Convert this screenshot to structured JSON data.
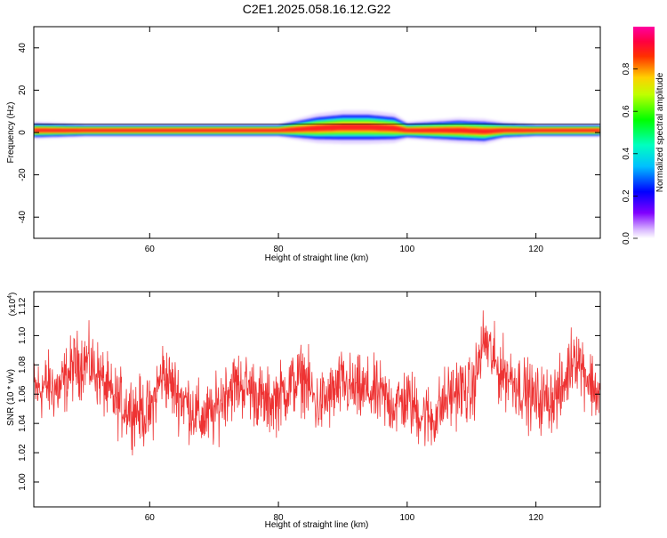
{
  "figure_title": "C2E1.2025.058.16.12.G22",
  "colors": {
    "line": "#ee3333",
    "band_core": "#ff2020",
    "band_yellow": "#ffe000",
    "band_green": "#30ff30",
    "band_cyan": "#20e0ff",
    "band_blue": "#1010ff",
    "band_violet": "#c8a8ff"
  },
  "colorbar": {
    "label": "Normalized spectral amplitude",
    "ticks": [
      "0.0",
      "0.2",
      "0.4",
      "0.6",
      "0.8"
    ],
    "tick_values": [
      0.0,
      0.2,
      0.4,
      0.6,
      0.8
    ],
    "range": [
      0,
      1
    ],
    "colormap": "rainbow (violet-blue-cyan-green-yellow-red-magenta)"
  },
  "chart_data": [
    {
      "type": "heatmap",
      "title": "",
      "xlabel": "Height of straight line (km)",
      "ylabel": "Frequency (Hz)",
      "xlim": [
        42,
        130
      ],
      "ylim": [
        -50,
        50
      ],
      "x_ticks": [
        60,
        80,
        100,
        120
      ],
      "y_ticks": [
        -40,
        -20,
        0,
        20,
        40
      ],
      "band": {
        "x": [
          42,
          50,
          60,
          70,
          80,
          83,
          86,
          90,
          94,
          98,
          100,
          104,
          108,
          112,
          115,
          120,
          130
        ],
        "center_hz": [
          1,
          1,
          1,
          1,
          1,
          1.5,
          2,
          2.5,
          2.5,
          2,
          1,
          1,
          1,
          0.5,
          1,
          1,
          1
        ],
        "half_width_hz": [
          2,
          1.5,
          1.5,
          1.5,
          1.5,
          2.5,
          3.5,
          4,
          4,
          3.5,
          2,
          2.5,
          3,
          3,
          2,
          1.5,
          1.5
        ]
      }
    },
    {
      "type": "line",
      "title": "",
      "xlabel": "Height of straight line (km)",
      "ylabel": "SNR (10 * v/v)",
      "y_multiplier": "(x10^4)",
      "y_multiplier_base": "(x10",
      "y_multiplier_exp": "4",
      "y_multiplier_close": ")",
      "xlim": [
        42,
        130
      ],
      "ylim": [
        0.983,
        1.13
      ],
      "x_ticks": [
        60,
        80,
        100,
        120
      ],
      "y_ticks": [
        1.0,
        1.02,
        1.04,
        1.06,
        1.08,
        1.1,
        1.12
      ],
      "y_tick_labels": [
        "1.00",
        "1.02",
        "1.04",
        "1.06",
        "1.08",
        "1.10",
        "1.12"
      ],
      "series": [
        {
          "trend_x": [
            42,
            44,
            46,
            48,
            50,
            52,
            54,
            56,
            58,
            60,
            62,
            64,
            66,
            68,
            70,
            72,
            74,
            76,
            78,
            80,
            82,
            84,
            86,
            88,
            90,
            92,
            94,
            96,
            98,
            100,
            102,
            104,
            106,
            108,
            110,
            112,
            114,
            116,
            118,
            120,
            122,
            124,
            126,
            128,
            130
          ],
          "trend_y": [
            1.062,
            1.066,
            1.063,
            1.078,
            1.083,
            1.074,
            1.058,
            1.052,
            1.049,
            1.046,
            1.075,
            1.062,
            1.053,
            1.043,
            1.046,
            1.064,
            1.067,
            1.063,
            1.053,
            1.058,
            1.066,
            1.072,
            1.052,
            1.058,
            1.067,
            1.062,
            1.062,
            1.058,
            1.053,
            1.056,
            1.047,
            1.043,
            1.056,
            1.064,
            1.06,
            1.098,
            1.077,
            1.072,
            1.063,
            1.056,
            1.057,
            1.061,
            1.09,
            1.072,
            1.058
          ],
          "noise_amplitude": 0.014,
          "samples": 1500
        }
      ]
    }
  ]
}
